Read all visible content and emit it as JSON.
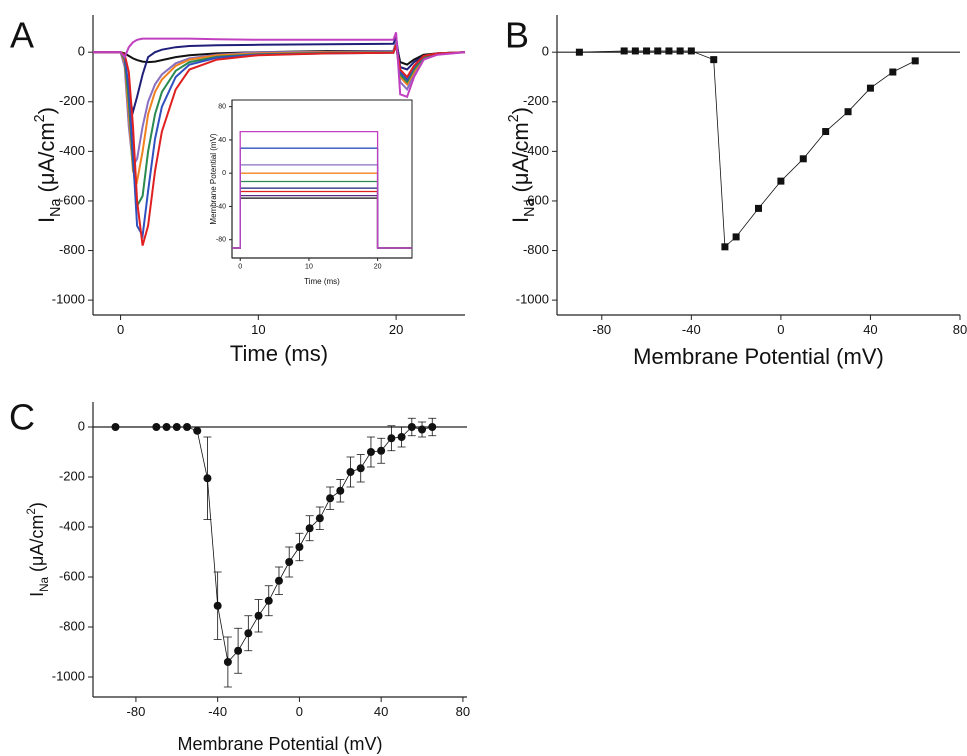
{
  "chart_data": [
    {
      "type": "line",
      "panel_label": "A",
      "xlabel": [
        {
          "text": "Time (ms)"
        }
      ],
      "ylabel": [
        {
          "text": "I"
        },
        {
          "text": "Na",
          "sub": true
        },
        {
          "text": " (μA/cm"
        },
        {
          "text": "2",
          "sup": true
        },
        {
          "text": ")"
        }
      ],
      "xlim": [
        -2,
        25
      ],
      "xticks": [
        0,
        10,
        20
      ],
      "ylim": [
        -1060,
        150
      ],
      "yticks": [
        0,
        -200,
        -400,
        -600,
        -800,
        -1000
      ],
      "x": [
        -2,
        0,
        0.3,
        0.6,
        0.9,
        1.2,
        1.6,
        2,
        2.5,
        3,
        4,
        5,
        7,
        10,
        15,
        19.8,
        20,
        20.3,
        20.8,
        21.3,
        22,
        23,
        25
      ],
      "series": [
        {
          "color": "#111111",
          "values": [
            0,
            0,
            -5,
            -15,
            -25,
            -32,
            -38,
            -40,
            -38,
            -32,
            -20,
            -12,
            -5,
            0,
            5,
            5,
            40,
            -40,
            -50,
            -30,
            -10,
            -5,
            0
          ]
        },
        {
          "color": "#1f1f7a",
          "values": [
            0,
            0,
            -40,
            -180,
            -240,
            -180,
            -90,
            -20,
            0,
            10,
            20,
            25,
            28,
            30,
            32,
            34,
            60,
            -60,
            -70,
            -40,
            -15,
            -5,
            0
          ]
        },
        {
          "color": "#8a6fc0",
          "values": [
            0,
            0,
            -60,
            -300,
            -460,
            -430,
            -300,
            -200,
            -130,
            -90,
            -45,
            -25,
            -10,
            0,
            2,
            5,
            40,
            -120,
            -150,
            -90,
            -25,
            -8,
            0
          ]
        },
        {
          "color": "#f08020",
          "values": [
            0,
            0,
            -40,
            -250,
            -480,
            -520,
            -400,
            -250,
            -160,
            -110,
            -55,
            -30,
            -12,
            -5,
            0,
            0,
            30,
            -100,
            -130,
            -80,
            -20,
            -5,
            0
          ]
        },
        {
          "color": "#2a8a50",
          "values": [
            0,
            0,
            -30,
            -200,
            -450,
            -620,
            -580,
            -400,
            -250,
            -160,
            -75,
            -40,
            -18,
            -8,
            -3,
            0,
            30,
            -90,
            -120,
            -70,
            -20,
            -5,
            0
          ]
        },
        {
          "color": "#3050c0",
          "values": [
            0,
            0,
            -20,
            -150,
            -420,
            -700,
            -740,
            -560,
            -350,
            -220,
            -100,
            -50,
            -22,
            -10,
            -5,
            -2,
            30,
            -80,
            -110,
            -60,
            -15,
            -5,
            0
          ]
        },
        {
          "color": "#e02020",
          "values": [
            0,
            0,
            -10,
            -80,
            -300,
            -600,
            -780,
            -700,
            -480,
            -320,
            -150,
            -70,
            -30,
            -12,
            -5,
            -2,
            30,
            -70,
            -100,
            -55,
            -15,
            -5,
            0
          ]
        },
        {
          "color": "#c040c0",
          "values": [
            0,
            0,
            -20,
            20,
            40,
            50,
            55,
            55,
            55,
            55,
            55,
            55,
            52,
            50,
            50,
            50,
            80,
            -170,
            -180,
            -100,
            -30,
            -10,
            0
          ]
        }
      ]
    },
    {
      "type": "line",
      "xlabel": [
        {
          "text": "Time (ms)"
        }
      ],
      "ylabel": [
        {
          "text": "Membrane Potential (mV)"
        }
      ],
      "xlim": [
        -1.2,
        25
      ],
      "xticks": [
        0,
        10,
        20
      ],
      "ylim": [
        -102,
        88
      ],
      "yticks": [
        -80,
        -40,
        0,
        40,
        80
      ],
      "x": [
        -1.2,
        0,
        0,
        20,
        20,
        25
      ],
      "series": [
        {
          "color": "#111111",
          "values": [
            -90,
            -90,
            -30,
            -30,
            -90,
            -90
          ]
        },
        {
          "color": "#5a2a80",
          "values": [
            -90,
            -90,
            -27,
            -27,
            -90,
            -90
          ]
        },
        {
          "color": "#e02020",
          "values": [
            -90,
            -90,
            -22,
            -22,
            -90,
            -90
          ]
        },
        {
          "color": "#1f1f7a",
          "values": [
            -90,
            -90,
            -18,
            -18,
            -90,
            -90
          ]
        },
        {
          "color": "#2a8a50",
          "values": [
            -90,
            -90,
            -10,
            -10,
            -90,
            -90
          ]
        },
        {
          "color": "#f08020",
          "values": [
            -90,
            -90,
            0,
            0,
            -90,
            -90
          ]
        },
        {
          "color": "#8a6fc0",
          "values": [
            -90,
            -90,
            10,
            10,
            -90,
            -90
          ]
        },
        {
          "color": "#3050c0",
          "values": [
            -90,
            -90,
            30,
            30,
            -90,
            -90
          ]
        },
        {
          "color": "#c040c0",
          "values": [
            -90,
            -90,
            50,
            50,
            -90,
            -90
          ]
        }
      ]
    },
    {
      "type": "line",
      "panel_label": "B",
      "marker": "square",
      "zero_line": true,
      "color": "#111111",
      "xlabel": [
        {
          "text": "Membrane Potential (mV)"
        }
      ],
      "ylabel": [
        {
          "text": "I"
        },
        {
          "text": "Na",
          "sub": true
        },
        {
          "text": " (μA/cm"
        },
        {
          "text": "2",
          "sup": true
        },
        {
          "text": ")"
        }
      ],
      "xlim": [
        -100,
        80
      ],
      "xticks": [
        -80,
        -40,
        0,
        40,
        80
      ],
      "ylim": [
        -1060,
        150
      ],
      "yticks": [
        0,
        -200,
        -400,
        -600,
        -800,
        -1000
      ],
      "x": [
        -90,
        -70,
        -65,
        -60,
        -55,
        -50,
        -45,
        -40,
        -30,
        -25,
        -20,
        -10,
        0,
        10,
        20,
        30,
        40,
        50,
        60
      ],
      "values": [
        0,
        5,
        5,
        5,
        5,
        5,
        5,
        5,
        -30,
        -785,
        -745,
        -630,
        -520,
        -430,
        -320,
        -240,
        -145,
        -80,
        -35
      ]
    },
    {
      "type": "line",
      "panel_label": "C",
      "marker": "circle",
      "zero_line": true,
      "color": "#111111",
      "xlabel": [
        {
          "text": "Membrane Potential (mV)"
        }
      ],
      "ylabel": [
        {
          "text": "I"
        },
        {
          "text": "Na",
          "sub": true
        },
        {
          "text": " (μA/cm"
        },
        {
          "text": "2",
          "sup": true
        },
        {
          "text": ")"
        }
      ],
      "xlim": [
        -101,
        82
      ],
      "xticks": [
        -80,
        -40,
        0,
        40,
        80
      ],
      "ylim": [
        -1080,
        100
      ],
      "yticks": [
        0,
        -200,
        -400,
        -600,
        -800,
        -1000
      ],
      "x": [
        -90,
        -70,
        -65,
        -60,
        -55,
        -50,
        -45,
        -40,
        -35,
        -30,
        -25,
        -20,
        -15,
        -10,
        -5,
        0,
        5,
        10,
        15,
        20,
        25,
        30,
        35,
        40,
        45,
        50,
        55,
        60,
        65
      ],
      "values": [
        0,
        0,
        0,
        0,
        0,
        -15,
        -205,
        -715,
        -940,
        -895,
        -825,
        -755,
        -695,
        -615,
        -540,
        -480,
        -405,
        -365,
        -285,
        -255,
        -180,
        -165,
        -100,
        -95,
        -45,
        -40,
        0,
        -10,
        0
      ],
      "errors": [
        0,
        0,
        0,
        0,
        0,
        0,
        165,
        135,
        100,
        90,
        70,
        65,
        60,
        55,
        60,
        55,
        50,
        45,
        45,
        45,
        60,
        55,
        60,
        50,
        50,
        40,
        35,
        30,
        35
      ]
    }
  ]
}
